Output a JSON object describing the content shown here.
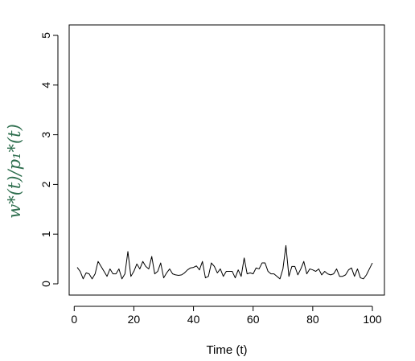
{
  "chart_data": {
    "type": "line",
    "title": "",
    "xlabel": "Time (t)",
    "ylabel": "w*(t)/p₁*(t)",
    "xlim": [
      1,
      100
    ],
    "ylim": [
      0,
      5
    ],
    "x_ticks": [
      0,
      20,
      40,
      60,
      80,
      100
    ],
    "y_ticks": [
      0,
      1,
      2,
      3,
      4,
      5
    ],
    "x_tick_labels": [
      "0",
      "20",
      "40",
      "60",
      "80",
      "100"
    ],
    "y_tick_labels": [
      "0",
      "1",
      "2",
      "3",
      "4",
      "5"
    ],
    "grid": false,
    "line_color": "#000000",
    "ylabel_color": "#2e6e4e",
    "series": [
      {
        "x": [
          1,
          2,
          3,
          4,
          5,
          6,
          7,
          8,
          9,
          10,
          11,
          12,
          13,
          14,
          15,
          16,
          17,
          18,
          19,
          20,
          21,
          22,
          23,
          24,
          25,
          26,
          27,
          28,
          29,
          30,
          31,
          32,
          33,
          34,
          35,
          36,
          37,
          38,
          39,
          40,
          41,
          42,
          43,
          44,
          45,
          46,
          47,
          48,
          49,
          50,
          51,
          52,
          53,
          54,
          55,
          56,
          57,
          58,
          59,
          60,
          61,
          62,
          63,
          64,
          65,
          66,
          67,
          68,
          69,
          70,
          71,
          72,
          73,
          74,
          75,
          76,
          77,
          78,
          79,
          80,
          81,
          82,
          83,
          84,
          85,
          86,
          87,
          88,
          89,
          90,
          91,
          92,
          93,
          94,
          95,
          96,
          97,
          98,
          99,
          100
        ],
        "values": [
          0.33,
          0.25,
          0.1,
          0.22,
          0.2,
          0.1,
          0.2,
          0.45,
          0.35,
          0.25,
          0.15,
          0.3,
          0.2,
          0.2,
          0.3,
          0.1,
          0.2,
          0.65,
          0.15,
          0.25,
          0.4,
          0.3,
          0.45,
          0.35,
          0.3,
          0.55,
          0.2,
          0.25,
          0.42,
          0.12,
          0.22,
          0.3,
          0.2,
          0.18,
          0.17,
          0.18,
          0.22,
          0.28,
          0.32,
          0.33,
          0.36,
          0.28,
          0.45,
          0.12,
          0.15,
          0.42,
          0.35,
          0.22,
          0.3,
          0.15,
          0.25,
          0.25,
          0.25,
          0.12,
          0.28,
          0.15,
          0.52,
          0.2,
          0.22,
          0.2,
          0.32,
          0.3,
          0.42,
          0.42,
          0.25,
          0.2,
          0.2,
          0.15,
          0.1,
          0.3,
          0.77,
          0.15,
          0.35,
          0.35,
          0.18,
          0.3,
          0.45,
          0.2,
          0.3,
          0.28,
          0.25,
          0.3,
          0.18,
          0.25,
          0.2,
          0.18,
          0.2,
          0.3,
          0.15,
          0.15,
          0.18,
          0.28,
          0.32,
          0.15,
          0.3,
          0.12,
          0.1,
          0.18,
          0.3,
          0.42
        ]
      }
    ]
  }
}
